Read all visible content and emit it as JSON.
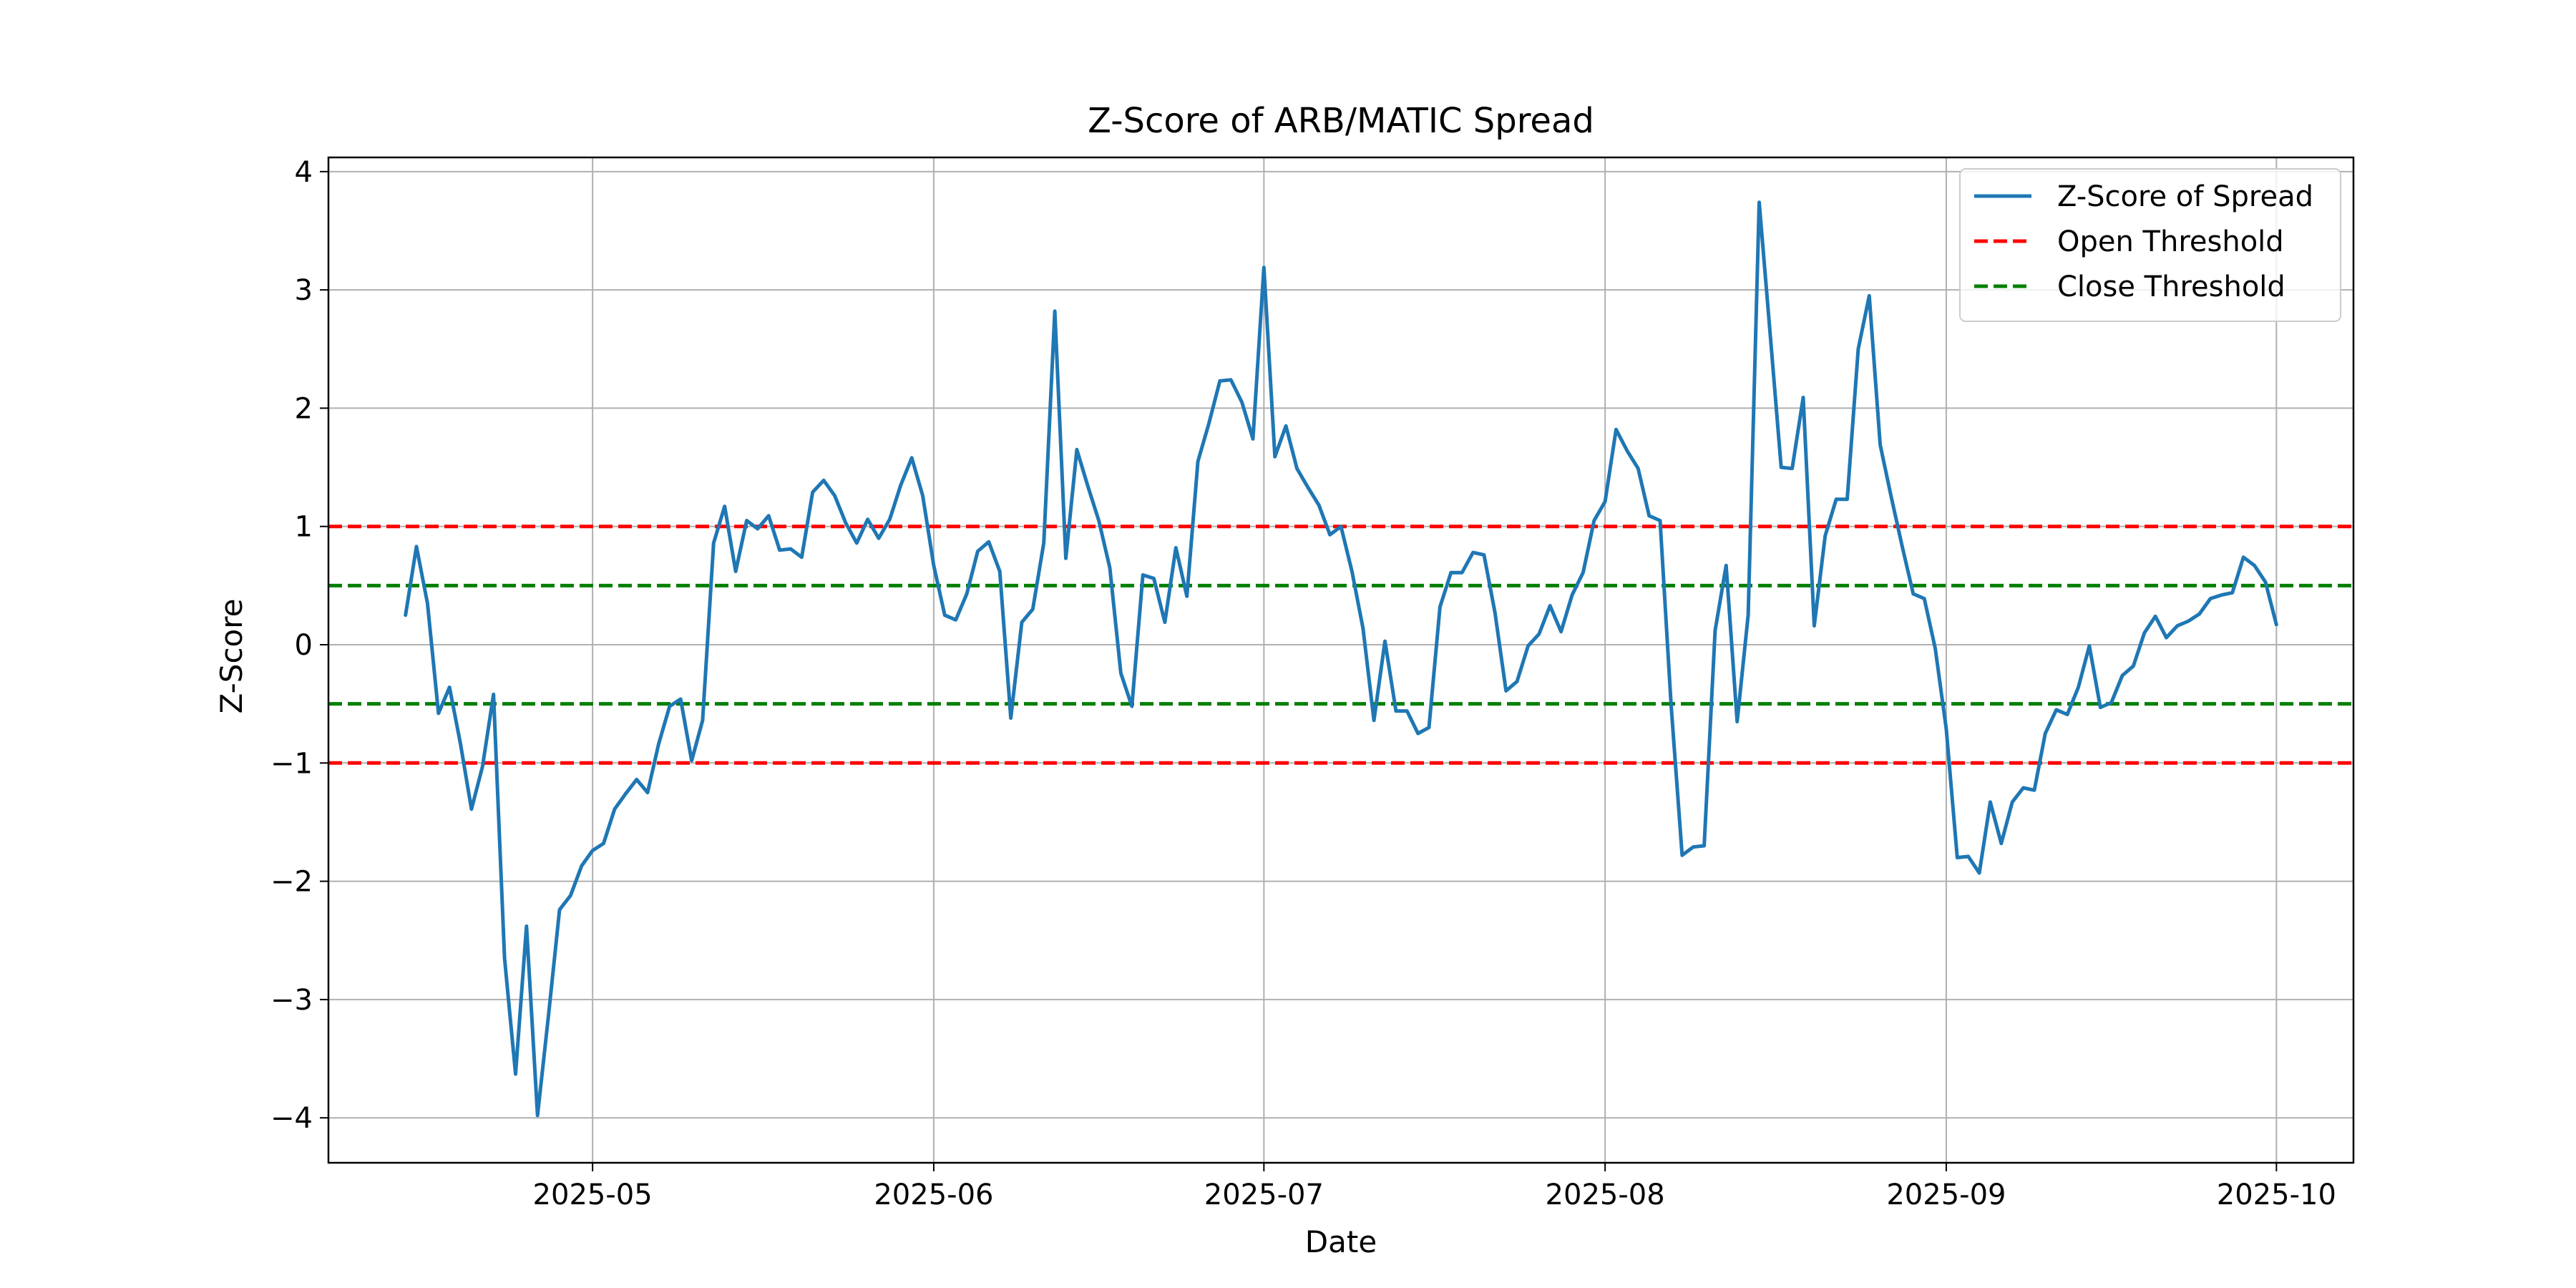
{
  "chart_data": {
    "type": "line",
    "title": "Z-Score of ARB/MATIC Spread",
    "xlabel": "Date",
    "ylabel": "Z-Score",
    "x_range": [
      "2025-04-07",
      "2025-10-08"
    ],
    "ylim": [
      -4.38,
      4.12
    ],
    "x_ticks": [
      {
        "date": "2025-05-01",
        "label": "2025-05"
      },
      {
        "date": "2025-06-01",
        "label": "2025-06"
      },
      {
        "date": "2025-07-01",
        "label": "2025-07"
      },
      {
        "date": "2025-08-01",
        "label": "2025-08"
      },
      {
        "date": "2025-09-01",
        "label": "2025-09"
      },
      {
        "date": "2025-10-01",
        "label": "2025-10"
      }
    ],
    "y_ticks": [
      {
        "value": 4,
        "label": "4"
      },
      {
        "value": 3,
        "label": "3"
      },
      {
        "value": 2,
        "label": "2"
      },
      {
        "value": 1,
        "label": "1"
      },
      {
        "value": 0,
        "label": "0"
      },
      {
        "value": -1,
        "label": "−1"
      },
      {
        "value": -2,
        "label": "−2"
      },
      {
        "value": -3,
        "label": "−3"
      },
      {
        "value": -4,
        "label": "−4"
      }
    ],
    "grid": true,
    "legend_position": "top-right",
    "series": [
      {
        "name": "Z-Score of Spread",
        "color": "#1f77b4",
        "style": "solid",
        "start_date": "2025-04-14",
        "values": [
          0.25,
          0.83,
          0.35,
          -0.58,
          -0.36,
          -0.84,
          -1.39,
          -1.03,
          -0.42,
          -2.65,
          -3.63,
          -2.38,
          -3.98,
          -3.13,
          -2.24,
          -2.12,
          -1.87,
          -1.74,
          -1.68,
          -1.39,
          -1.26,
          -1.14,
          -1.25,
          -0.84,
          -0.52,
          -0.46,
          -0.98,
          -0.64,
          0.86,
          1.17,
          0.62,
          1.05,
          0.98,
          1.09,
          0.8,
          0.81,
          0.74,
          1.29,
          1.39,
          1.26,
          1.03,
          0.86,
          1.06,
          0.9,
          1.06,
          1.35,
          1.58,
          1.26,
          0.67,
          0.25,
          0.21,
          0.43,
          0.79,
          0.87,
          0.62,
          -0.62,
          0.19,
          0.3,
          0.86,
          2.82,
          0.73,
          1.65,
          1.34,
          1.05,
          0.65,
          -0.24,
          -0.52,
          0.59,
          0.56,
          0.19,
          0.82,
          0.41,
          1.55,
          1.87,
          2.23,
          2.24,
          2.05,
          1.74,
          3.19,
          1.59,
          1.85,
          1.49,
          1.33,
          1.18,
          0.93,
          1.0,
          0.62,
          0.14,
          -0.64,
          0.03,
          -0.56,
          -0.56,
          -0.75,
          -0.7,
          0.32,
          0.61,
          0.61,
          0.78,
          0.76,
          0.27,
          -0.39,
          -0.31,
          -0.01,
          0.09,
          0.33,
          0.11,
          0.42,
          0.61,
          1.05,
          1.21,
          1.82,
          1.64,
          1.49,
          1.09,
          1.05,
          -0.51,
          -1.78,
          -1.71,
          -1.7,
          0.12,
          0.67,
          -0.65,
          0.25,
          3.74,
          2.63,
          1.5,
          1.49,
          2.09,
          0.16,
          0.92,
          1.23,
          1.23,
          2.5,
          2.95,
          1.69,
          1.25,
          0.83,
          0.43,
          0.39,
          -0.03,
          -0.71,
          -1.8,
          -1.79,
          -1.93,
          -1.33,
          -1.68,
          -1.33,
          -1.21,
          -1.23,
          -0.75,
          -0.55,
          -0.59,
          -0.36,
          -0.01,
          -0.53,
          -0.49,
          -0.26,
          -0.18,
          0.1,
          0.24,
          0.06,
          0.16,
          0.2,
          0.26,
          0.39,
          0.42,
          0.44,
          0.74,
          0.67,
          0.53,
          0.17
        ]
      }
    ],
    "reference_lines": [
      {
        "name": "Open Threshold",
        "color": "#ff0000",
        "style": "dashed",
        "values": [
          1,
          -1
        ]
      },
      {
        "name": "Close Threshold",
        "color": "#008000",
        "style": "dashed",
        "values": [
          0.5,
          -0.5
        ]
      }
    ]
  }
}
